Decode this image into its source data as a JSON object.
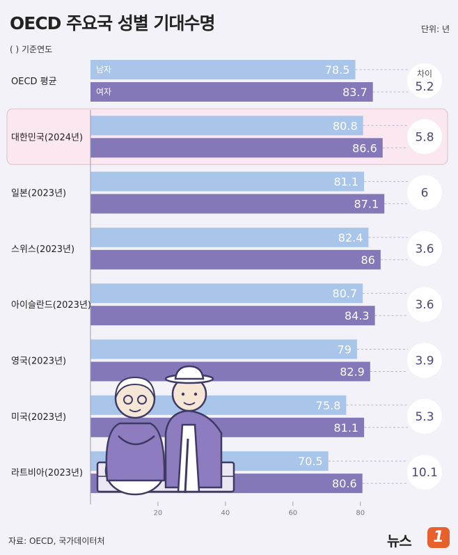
{
  "header": {
    "title": "OECD 주요국 성별 기대수명",
    "unit": "단위: 년",
    "subtitle": "( ) 기준연도"
  },
  "footer": {
    "source": "자료: OECD, 국가데이터처",
    "logo_text": "뉴스",
    "logo_badge": "1"
  },
  "colors": {
    "male": "#a9c5ea",
    "female": "#8578b8",
    "highlight_bg": "#fbe7ef",
    "highlight_border": "#d9c1cc",
    "gap_circle": "#ffffff",
    "gap_text": "#4a4677"
  },
  "chart_data": {
    "type": "bar",
    "orientation": "horizontal",
    "title": "OECD 주요국 성별 기대수명",
    "unit": "단위: 년",
    "categories": [
      "OECD 평균",
      "대한민국(2024년)",
      "일본(2023년)",
      "스위스(2023년)",
      "아이슬란드(2023년)",
      "영국(2023년)",
      "미국(2023년)",
      "라트비아(2023년)"
    ],
    "series": [
      {
        "name": "남자",
        "values": [
          78.5,
          80.8,
          81.1,
          82.4,
          80.7,
          79,
          75.8,
          70.5
        ]
      },
      {
        "name": "여자",
        "values": [
          83.7,
          86.6,
          87.1,
          86,
          84.3,
          82.9,
          81.1,
          80.6
        ]
      }
    ],
    "gap_label": "차이",
    "gap": [
      "5.2",
      "5.8",
      "6",
      "3.6",
      "3.6",
      "3.9",
      "5.3",
      "10.1"
    ],
    "highlight": "대한민국(2024년)",
    "xlim": [
      0,
      85
    ],
    "xticks": [
      20,
      40,
      60,
      80
    ],
    "grid": false,
    "legend": "inline in first bar pair"
  }
}
